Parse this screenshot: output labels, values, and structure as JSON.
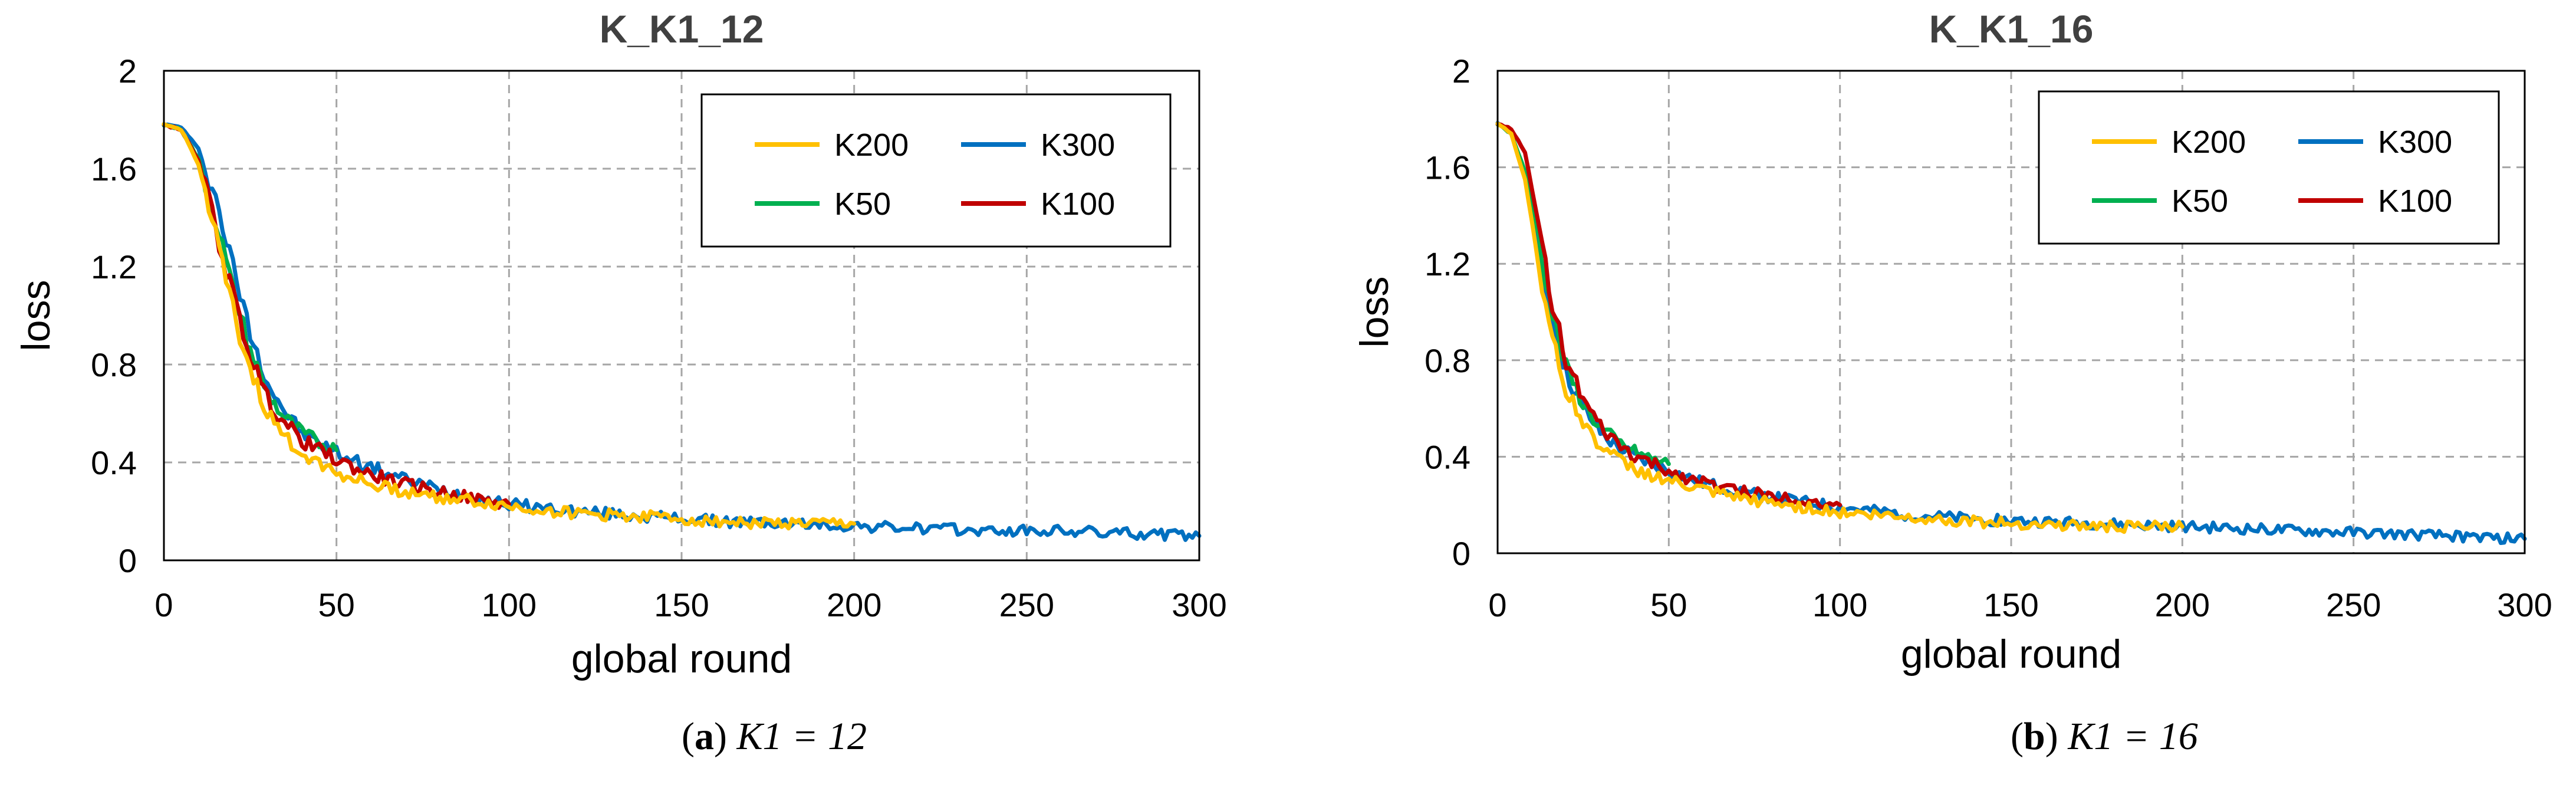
{
  "colors": {
    "K200": "#FFC000",
    "K300": "#0070C0",
    "K50": "#00B050",
    "K100": "#C00000",
    "grid": "#A6A6A6",
    "axis": "#000000",
    "title": "#404040"
  },
  "chart_data": [
    {
      "type": "line",
      "title": "K_K1_12",
      "xlabel": "global round",
      "ylabel": "loss",
      "xlim": [
        0,
        300
      ],
      "ylim": [
        0,
        2
      ],
      "xticks": [
        0,
        50,
        100,
        150,
        200,
        250,
        300
      ],
      "yticks": [
        0,
        0.4,
        0.8,
        1.2,
        1.6,
        2
      ],
      "grid": true,
      "legend_position": "top-right",
      "legend": [
        "K200",
        "K300",
        "K50",
        "K100"
      ],
      "caption": {
        "label": "a",
        "text": "K1 = 12"
      },
      "series": [
        {
          "name": "K200",
          "x": [
            0,
            5,
            10,
            15,
            20,
            25,
            30,
            35,
            40,
            50,
            60,
            70,
            80,
            90,
            100,
            120,
            140,
            160,
            180,
            200
          ],
          "y": [
            1.78,
            1.76,
            1.62,
            1.32,
            1.02,
            0.78,
            0.6,
            0.5,
            0.44,
            0.36,
            0.31,
            0.28,
            0.26,
            0.24,
            0.22,
            0.19,
            0.18,
            0.16,
            0.15,
            0.15
          ]
        },
        {
          "name": "K300",
          "x": [
            0,
            5,
            10,
            15,
            20,
            25,
            30,
            35,
            40,
            50,
            60,
            70,
            80,
            90,
            100,
            120,
            140,
            160,
            180,
            200,
            220,
            240,
            260,
            280,
            300
          ],
          "y": [
            1.78,
            1.77,
            1.68,
            1.48,
            1.2,
            0.93,
            0.73,
            0.61,
            0.52,
            0.44,
            0.38,
            0.33,
            0.29,
            0.26,
            0.23,
            0.2,
            0.18,
            0.16,
            0.15,
            0.14,
            0.13,
            0.12,
            0.12,
            0.11,
            0.1
          ]
        },
        {
          "name": "K50",
          "x": [
            0,
            5,
            10,
            15,
            20,
            25,
            30,
            35,
            40,
            45,
            50
          ],
          "y": [
            1.78,
            1.76,
            1.64,
            1.4,
            1.1,
            0.86,
            0.68,
            0.58,
            0.52,
            0.48,
            0.45
          ]
        },
        {
          "name": "K100",
          "x": [
            0,
            5,
            10,
            15,
            20,
            25,
            30,
            35,
            40,
            50,
            60,
            70,
            80,
            90,
            100
          ],
          "y": [
            1.78,
            1.76,
            1.63,
            1.36,
            1.08,
            0.84,
            0.66,
            0.56,
            0.49,
            0.41,
            0.35,
            0.31,
            0.28,
            0.25,
            0.23
          ]
        }
      ]
    },
    {
      "type": "line",
      "title": "K_K1_16",
      "xlabel": "global round",
      "ylabel": "loss",
      "xlim": [
        0,
        300
      ],
      "ylim": [
        0,
        2
      ],
      "xticks": [
        0,
        50,
        100,
        150,
        200,
        250,
        300
      ],
      "yticks": [
        0,
        0.4,
        0.8,
        1.2,
        1.6,
        2
      ],
      "grid": true,
      "legend_position": "top-right",
      "legend": [
        "K200",
        "K300",
        "K50",
        "K100"
      ],
      "caption": {
        "label": "b",
        "text": "K1 = 16"
      },
      "series": [
        {
          "name": "K200",
          "x": [
            0,
            4,
            8,
            12,
            16,
            20,
            25,
            30,
            35,
            40,
            50,
            60,
            70,
            80,
            90,
            100,
            120,
            140,
            160,
            180,
            200
          ],
          "y": [
            1.78,
            1.74,
            1.55,
            1.2,
            0.88,
            0.68,
            0.54,
            0.45,
            0.39,
            0.35,
            0.3,
            0.26,
            0.23,
            0.21,
            0.19,
            0.17,
            0.15,
            0.13,
            0.12,
            0.11,
            0.11
          ]
        },
        {
          "name": "K300",
          "x": [
            0,
            4,
            8,
            12,
            16,
            20,
            25,
            30,
            35,
            40,
            50,
            60,
            70,
            80,
            90,
            100,
            120,
            140,
            160,
            180,
            200,
            220,
            240,
            260,
            280,
            300
          ],
          "y": [
            1.78,
            1.74,
            1.56,
            1.25,
            0.95,
            0.74,
            0.6,
            0.5,
            0.44,
            0.4,
            0.34,
            0.29,
            0.26,
            0.23,
            0.21,
            0.19,
            0.16,
            0.14,
            0.13,
            0.12,
            0.11,
            0.1,
            0.09,
            0.08,
            0.07,
            0.06
          ]
        },
        {
          "name": "K50",
          "x": [
            0,
            4,
            8,
            12,
            16,
            20,
            25,
            30,
            35,
            40,
            45,
            50
          ],
          "y": [
            1.78,
            1.74,
            1.58,
            1.3,
            0.99,
            0.77,
            0.62,
            0.52,
            0.46,
            0.42,
            0.39,
            0.37
          ]
        },
        {
          "name": "K100",
          "x": [
            0,
            4,
            8,
            12,
            16,
            20,
            25,
            30,
            35,
            40,
            50,
            60,
            70,
            80,
            90,
            100
          ],
          "y": [
            1.78,
            1.76,
            1.66,
            1.36,
            1.04,
            0.8,
            0.63,
            0.52,
            0.45,
            0.4,
            0.34,
            0.29,
            0.26,
            0.24,
            0.22,
            0.2
          ]
        }
      ]
    }
  ]
}
